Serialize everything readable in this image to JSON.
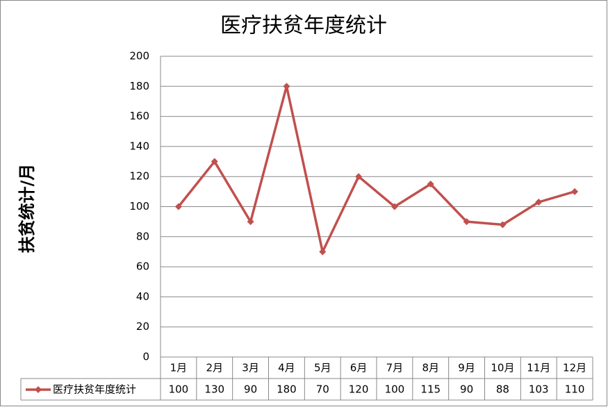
{
  "chart_data": {
    "type": "line",
    "title": "医疗扶贫年度统计",
    "y_label": "扶贫统计/月",
    "categories": [
      "1月",
      "2月",
      "3月",
      "4月",
      "5月",
      "6月",
      "7月",
      "8月",
      "9月",
      "10月",
      "11月",
      "12月"
    ],
    "series": [
      {
        "name": "医疗扶贫年度统计",
        "color": "#c0504d",
        "values": [
          100,
          130,
          90,
          180,
          70,
          120,
          100,
          115,
          90,
          88,
          103,
          110
        ]
      }
    ],
    "ylim": [
      0,
      200
    ],
    "yticks": [
      0,
      20,
      40,
      60,
      80,
      100,
      120,
      140,
      160,
      180,
      200
    ],
    "grid": true,
    "data_table": true
  }
}
